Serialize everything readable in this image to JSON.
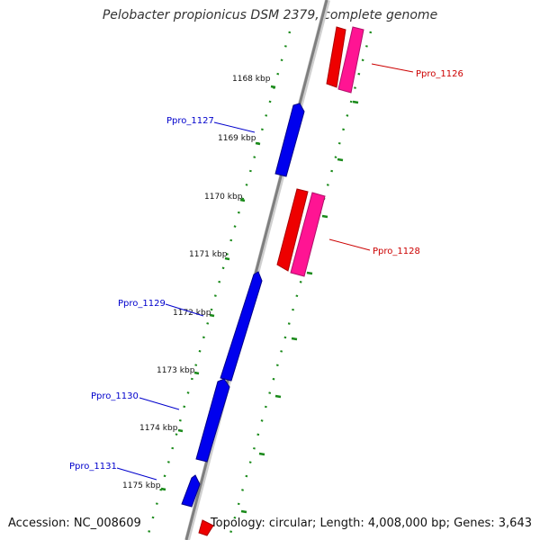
{
  "title": "Pelobacter propionicus DSM 2379, complete genome",
  "footer": {
    "accession": "Accession: NC_008609",
    "summary": "Topology: circular; Length: 4,008,000 bp; Genes: 3,643"
  },
  "colors": {
    "backbone": "#808080",
    "ticks": "#1a8a1a",
    "forward_strand": "#ee0000",
    "forward_strand_alt": "#ff1493",
    "reverse_strand": "#0000ee",
    "label_forward": "#cc0000",
    "label_reverse": "#0000cc"
  },
  "ticks": [
    {
      "label": "1168 kbp"
    },
    {
      "label": "1169 kbp"
    },
    {
      "label": "1170 kbp"
    },
    {
      "label": "1171 kbp"
    },
    {
      "label": "1172 kbp"
    },
    {
      "label": "1173 kbp"
    },
    {
      "label": "1174 kbp"
    },
    {
      "label": "1175 kbp"
    }
  ],
  "genes": [
    {
      "name": "Ppro_1126",
      "strand": "+"
    },
    {
      "name": "Ppro_1127",
      "strand": "-"
    },
    {
      "name": "Ppro_1128",
      "strand": "+"
    },
    {
      "name": "Ppro_1129",
      "strand": "-"
    },
    {
      "name": "Ppro_1130",
      "strand": "-"
    },
    {
      "name": "Ppro_1131",
      "strand": "-"
    }
  ]
}
